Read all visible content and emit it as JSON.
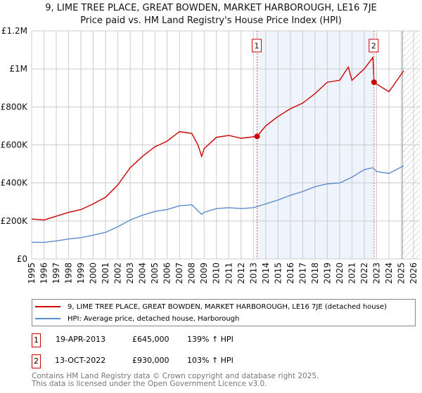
{
  "chart_data": {
    "type": "line",
    "title": "9, LIME TREE PLACE, GREAT BOWDEN, MARKET HARBOROUGH, LE16 7JE",
    "subtitle": "Price paid vs. HM Land Registry's House Price Index (HPI)",
    "xlim": [
      1995,
      2026
    ],
    "ylim": [
      0,
      1200000
    ],
    "x_ticks": [
      "1995",
      "1996",
      "1997",
      "1998",
      "1999",
      "2000",
      "2001",
      "2002",
      "2003",
      "2004",
      "2005",
      "2006",
      "2007",
      "2008",
      "2009",
      "2010",
      "2011",
      "2012",
      "2013",
      "2014",
      "2015",
      "2016",
      "2017",
      "2018",
      "2019",
      "2020",
      "2021",
      "2022",
      "2023",
      "2024",
      "2025",
      "2026"
    ],
    "y_ticks": [
      {
        "v": 0,
        "label": "£0"
      },
      {
        "v": 200000,
        "label": "£200K"
      },
      {
        "v": 400000,
        "label": "£400K"
      },
      {
        "v": 600000,
        "label": "£600K"
      },
      {
        "v": 800000,
        "label": "£800K"
      },
      {
        "v": 1000000,
        "label": "£1M"
      },
      {
        "v": 1200000,
        "label": "£1.2M"
      }
    ],
    "shaded_range": [
      2013.3,
      2022.79
    ],
    "hatched_from": 2025.1,
    "series": [
      {
        "name": "9, LIME TREE PLACE, GREAT BOWDEN, MARKET HARBOROUGH, LE16 7JE (detached house)",
        "color": "#cc0000",
        "x": [
          1995,
          1996,
          1997,
          1998,
          1999,
          2000,
          2001,
          2002,
          2003,
          2004,
          2005,
          2006,
          2007,
          2008,
          2008.5,
          2008.8,
          2009,
          2010,
          2011,
          2012,
          2013.3,
          2014,
          2015,
          2016,
          2017,
          2018,
          2019,
          2020,
          2020.7,
          2021,
          2022,
          2022.7,
          2022.79,
          2023,
          2024,
          2025.2
        ],
        "values": [
          210000,
          205000,
          225000,
          245000,
          260000,
          290000,
          325000,
          390000,
          480000,
          540000,
          590000,
          620000,
          670000,
          660000,
          600000,
          540000,
          580000,
          640000,
          650000,
          635000,
          645000,
          700000,
          750000,
          790000,
          820000,
          870000,
          930000,
          940000,
          1010000,
          940000,
          1000000,
          1060000,
          930000,
          920000,
          880000,
          990000
        ]
      },
      {
        "name": "HPI: Average price, detached house, Harborough",
        "color": "#5b8ccc",
        "x": [
          1995,
          1996,
          1997,
          1998,
          1999,
          2000,
          2001,
          2002,
          2003,
          2004,
          2005,
          2006,
          2007,
          2008,
          2008.8,
          2009,
          2010,
          2011,
          2012,
          2013,
          2014,
          2015,
          2016,
          2017,
          2018,
          2019,
          2020,
          2021,
          2022,
          2022.7,
          2023,
          2024,
          2025.2
        ],
        "values": [
          88000,
          87000,
          95000,
          105000,
          112000,
          125000,
          140000,
          170000,
          205000,
          230000,
          250000,
          260000,
          280000,
          285000,
          235000,
          245000,
          265000,
          270000,
          265000,
          270000,
          290000,
          310000,
          335000,
          355000,
          380000,
          395000,
          400000,
          430000,
          470000,
          480000,
          460000,
          450000,
          490000
        ]
      }
    ],
    "sales": [
      {
        "id": "1",
        "x": 2013.3,
        "value": 645000,
        "date": "19-APR-2013",
        "price": "£645,000",
        "hpi": "139% ↑ HPI"
      },
      {
        "id": "2",
        "x": 2022.79,
        "value": 930000,
        "date": "13-OCT-2022",
        "price": "£930,000",
        "hpi": "103% ↑ HPI"
      }
    ]
  },
  "footer": {
    "line1": "Contains HM Land Registry data © Crown copyright and database right 2025.",
    "line2": "This data is licensed under the Open Government Licence v3.0."
  }
}
